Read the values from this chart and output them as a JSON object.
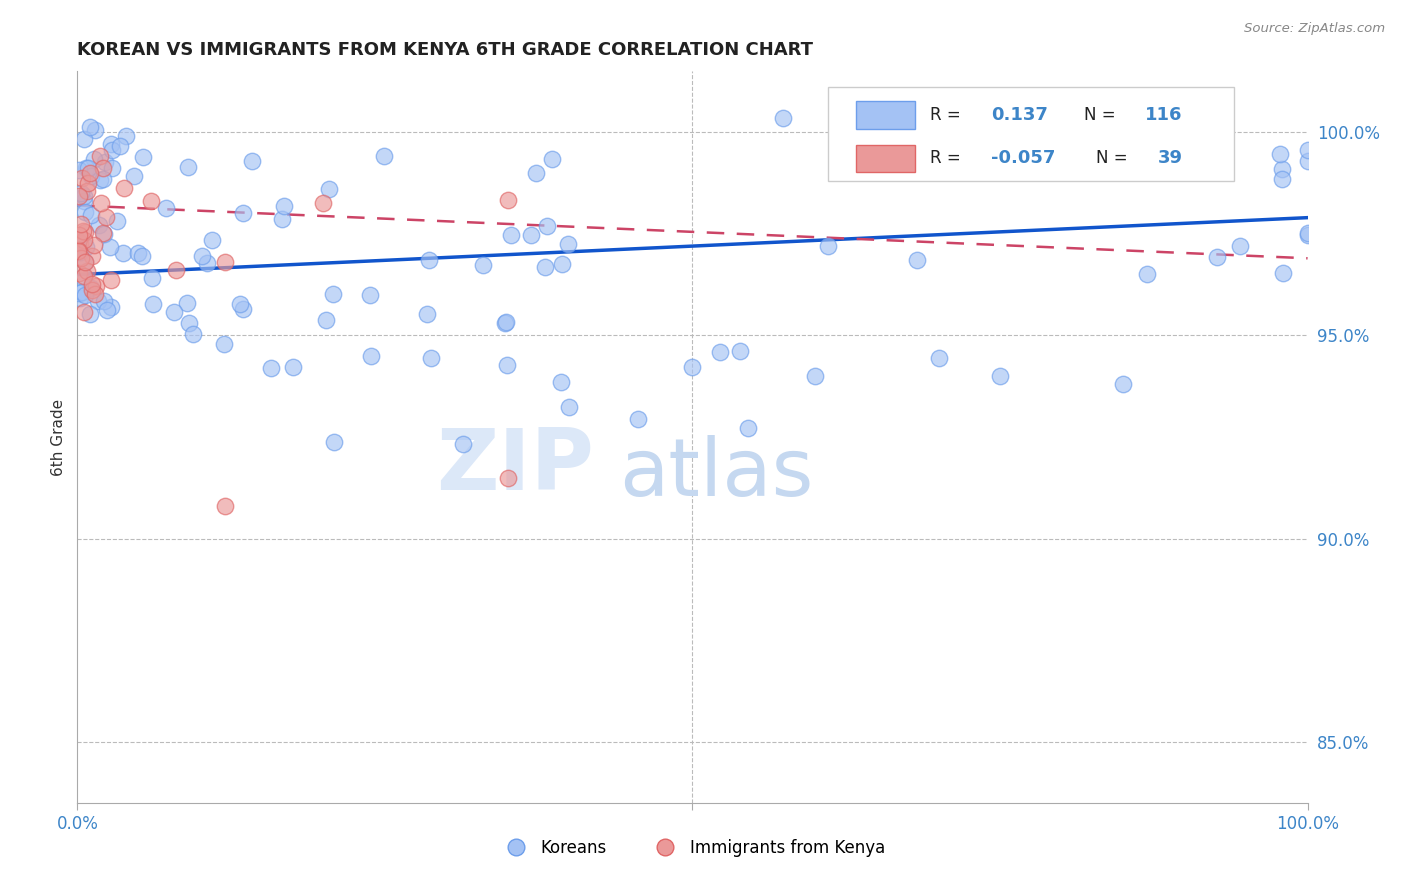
{
  "title": "KOREAN VS IMMIGRANTS FROM KENYA 6TH GRADE CORRELATION CHART",
  "source": "Source: ZipAtlas.com",
  "ylabel": "6th Grade",
  "right_yticks": [
    85.0,
    90.0,
    95.0,
    100.0
  ],
  "korean_R": 0.137,
  "korean_N": 116,
  "kenya_R": -0.057,
  "kenya_N": 39,
  "korean_color": "#a4c2f4",
  "kenya_color": "#ea9999",
  "korean_edge_color": "#6d9eeb",
  "kenya_edge_color": "#e06666",
  "trend_blue_color": "#1155cc",
  "trend_pink_color": "#cc4466",
  "watermark_zip": "ZIP",
  "watermark_atlas": "atlas",
  "xlim": [
    0.0,
    100.0
  ],
  "ylim": [
    83.5,
    101.5
  ],
  "legend_R1": "R = ",
  "legend_V1": "0.137",
  "legend_N1": "N = ",
  "legend_NV1": "116",
  "legend_R2": "R = ",
  "legend_V2": "-0.057",
  "legend_N2": "N = ",
  "legend_NV2": "39"
}
